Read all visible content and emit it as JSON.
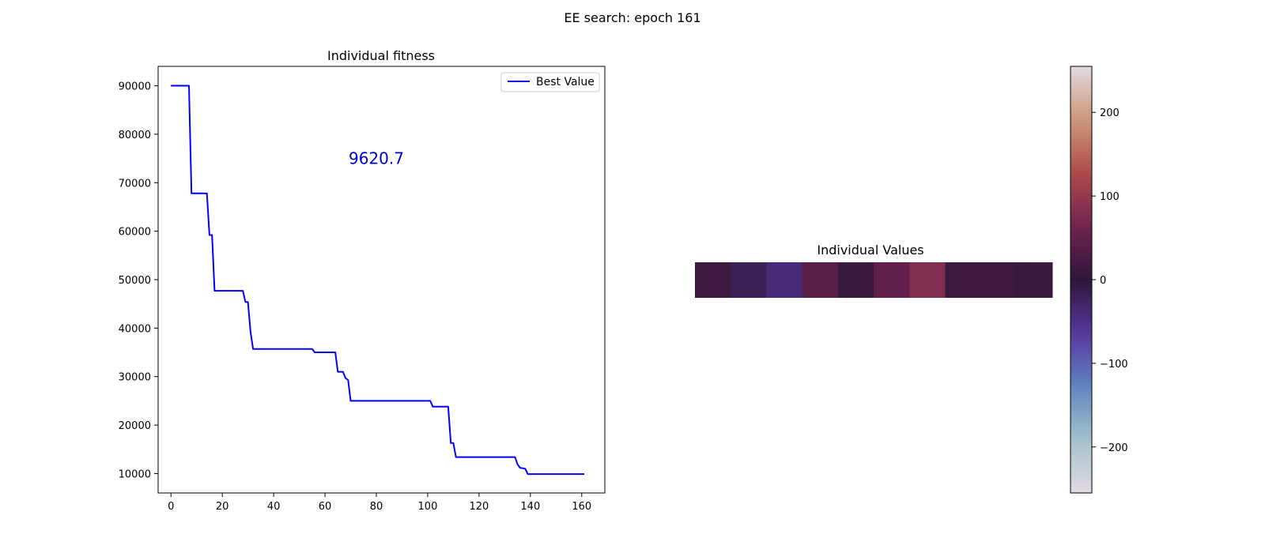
{
  "figure": {
    "suptitle": "EE search: epoch 161"
  },
  "chart_data": [
    {
      "type": "line",
      "title": "Individual fitness",
      "xlabel": "",
      "ylabel": "",
      "xlim": [
        -5,
        169
      ],
      "ylim": [
        6000,
        94000
      ],
      "xticks": [
        0,
        20,
        40,
        60,
        80,
        100,
        120,
        140,
        160
      ],
      "yticks": [
        10000,
        20000,
        30000,
        40000,
        50000,
        60000,
        70000,
        80000,
        90000
      ],
      "legend": {
        "position": "top-right",
        "entries": [
          "Best Value"
        ]
      },
      "annotation": {
        "text": "9620.7",
        "x": 80,
        "y": 75000,
        "color": "#0000cc"
      },
      "grid": false,
      "series": [
        {
          "name": "Best Value",
          "color": "#0000ff",
          "points": [
            [
              0,
              90000
            ],
            [
              7,
              90000
            ],
            [
              8,
              67800
            ],
            [
              14,
              67800
            ],
            [
              15,
              59200
            ],
            [
              16,
              59200
            ],
            [
              17,
              47700
            ],
            [
              28,
              47700
            ],
            [
              29,
              45400
            ],
            [
              30,
              45400
            ],
            [
              31,
              39200
            ],
            [
              32,
              35700
            ],
            [
              55,
              35700
            ],
            [
              56,
              35000
            ],
            [
              64,
              35000
            ],
            [
              65,
              31000
            ],
            [
              67,
              31000
            ],
            [
              68,
              29700
            ],
            [
              69,
              29300
            ],
            [
              70,
              25000
            ],
            [
              101,
              25000
            ],
            [
              102,
              23800
            ],
            [
              108,
              23800
            ],
            [
              109,
              16300
            ],
            [
              110,
              16300
            ],
            [
              111,
              13400
            ],
            [
              134,
              13400
            ],
            [
              135,
              11900
            ],
            [
              136,
              11200
            ],
            [
              138,
              11000
            ],
            [
              139,
              9900
            ],
            [
              161,
              9900
            ]
          ]
        }
      ]
    },
    {
      "type": "heatmap",
      "title": "Individual Values",
      "values": [
        15,
        -20,
        -40,
        40,
        10,
        50,
        80,
        15,
        15,
        10
      ],
      "colormap": "twilight",
      "clim": [
        -255,
        255
      ],
      "colorbar_ticks": [
        200,
        100,
        0,
        -100,
        -200
      ],
      "colorbar_tick_labels": [
        "200",
        "100",
        "0",
        "−100",
        "−200"
      ]
    }
  ]
}
